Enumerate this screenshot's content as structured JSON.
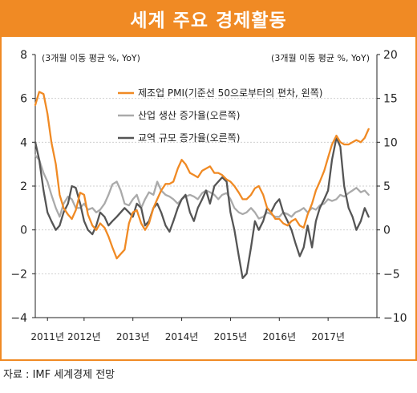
{
  "header": {
    "title": "세계 주요 경제활동"
  },
  "source": "자료 : IMF 세계경제 전망",
  "chart_data": {
    "type": "line",
    "left_unit": "(3개월 이동 평균 %, YoY)",
    "right_unit": "(3개월 이동 평균 %, YoY)",
    "y_left": {
      "min": -4,
      "max": 8,
      "ticks": [
        -4,
        -2,
        0,
        2,
        4,
        6,
        8
      ]
    },
    "y_right": {
      "min": -10,
      "max": 20,
      "ticks": [
        -10,
        -5,
        0,
        5,
        10,
        15,
        20
      ]
    },
    "x_range": [
      2011.0,
      2018.0
    ],
    "x_labels": [
      "2011년",
      "2012년",
      "2013년",
      "2014년",
      "2015년",
      "2016년",
      "2017년"
    ],
    "x_label_years": [
      2011.25,
      2012.0,
      2013.0,
      2014.0,
      2015.0,
      2016.0,
      2017.0
    ],
    "grid": true,
    "legend_position": "top-right",
    "colors": {
      "pmi": "#f08a24",
      "industrial": "#aaaaaa",
      "trade": "#555555",
      "accent": "#f08a24"
    },
    "series": [
      {
        "name": "제조업 PMI(기준선 50으로부터의 편차, 왼쪽)",
        "axis": "left",
        "color": "#f08a24",
        "x": [
          2011.0,
          2011.08,
          2011.17,
          2011.25,
          2011.33,
          2011.42,
          2011.5,
          2011.58,
          2011.67,
          2011.75,
          2011.83,
          2011.92,
          2012.0,
          2012.08,
          2012.17,
          2012.25,
          2012.33,
          2012.42,
          2012.5,
          2012.58,
          2012.67,
          2012.75,
          2012.83,
          2012.92,
          2013.0,
          2013.08,
          2013.17,
          2013.25,
          2013.33,
          2013.42,
          2013.5,
          2013.58,
          2013.67,
          2013.75,
          2013.83,
          2013.92,
          2014.0,
          2014.08,
          2014.17,
          2014.25,
          2014.33,
          2014.42,
          2014.5,
          2014.58,
          2014.67,
          2014.75,
          2014.83,
          2014.92,
          2015.0,
          2015.08,
          2015.17,
          2015.25,
          2015.33,
          2015.42,
          2015.5,
          2015.58,
          2015.67,
          2015.75,
          2015.83,
          2015.92,
          2016.0,
          2016.08,
          2016.17,
          2016.25,
          2016.33,
          2016.42,
          2016.5,
          2016.58,
          2016.67,
          2016.75,
          2016.83,
          2016.92,
          2017.0,
          2017.08,
          2017.17,
          2017.25,
          2017.33,
          2017.42,
          2017.5,
          2017.58,
          2017.67,
          2017.75,
          2017.83
        ],
        "values": [
          5.7,
          6.3,
          6.2,
          5.3,
          4.0,
          3.0,
          1.6,
          1.0,
          0.7,
          0.5,
          0.9,
          1.7,
          1.6,
          0.7,
          0.2,
          0.0,
          0.3,
          0.1,
          -0.3,
          -0.8,
          -1.3,
          -1.1,
          -0.9,
          0.3,
          0.8,
          0.9,
          0.3,
          0.0,
          0.3,
          1.0,
          1.4,
          1.8,
          2.1,
          2.1,
          2.2,
          2.8,
          3.2,
          3.0,
          2.6,
          2.5,
          2.4,
          2.7,
          2.8,
          2.9,
          2.6,
          2.6,
          2.5,
          2.3,
          2.2,
          2.0,
          1.7,
          1.4,
          1.4,
          1.6,
          1.9,
          2.0,
          1.6,
          1.0,
          0.8,
          0.5,
          0.5,
          0.3,
          0.2,
          0.4,
          0.5,
          0.2,
          0.1,
          0.7,
          1.2,
          1.8,
          2.2,
          2.7,
          3.3,
          3.9,
          4.3,
          4.0,
          3.9,
          3.9,
          4.0,
          4.1,
          4.0,
          4.2,
          4.6
        ]
      },
      {
        "name": "산업 생산 증가율(오른쪽)",
        "axis": "right",
        "color": "#aaaaaa",
        "x": [
          2011.0,
          2011.08,
          2011.17,
          2011.25,
          2011.33,
          2011.42,
          2011.5,
          2011.58,
          2011.67,
          2011.75,
          2011.83,
          2011.92,
          2012.0,
          2012.08,
          2012.17,
          2012.25,
          2012.33,
          2012.42,
          2012.5,
          2012.58,
          2012.67,
          2012.75,
          2012.83,
          2012.92,
          2013.0,
          2013.08,
          2013.17,
          2013.25,
          2013.33,
          2013.42,
          2013.5,
          2013.58,
          2013.67,
          2013.75,
          2013.83,
          2013.92,
          2014.0,
          2014.08,
          2014.17,
          2014.25,
          2014.33,
          2014.42,
          2014.5,
          2014.58,
          2014.67,
          2014.75,
          2014.83,
          2014.92,
          2015.0,
          2015.08,
          2015.17,
          2015.25,
          2015.33,
          2015.42,
          2015.5,
          2015.58,
          2015.67,
          2015.75,
          2015.83,
          2015.92,
          2016.0,
          2016.08,
          2016.17,
          2016.25,
          2016.33,
          2016.42,
          2016.5,
          2016.58,
          2016.67,
          2016.75,
          2016.83,
          2016.92,
          2017.0,
          2017.08,
          2017.17,
          2017.25,
          2017.33,
          2017.42,
          2017.5,
          2017.58,
          2017.67,
          2017.75,
          2017.83
        ],
        "values": [
          8.5,
          8.0,
          6.5,
          5.5,
          4.0,
          2.5,
          1.5,
          3.0,
          3.8,
          3.5,
          2.5,
          2.5,
          3.0,
          2.3,
          2.5,
          2.0,
          2.3,
          3.0,
          4.0,
          5.2,
          5.5,
          4.5,
          3.0,
          2.8,
          3.5,
          4.0,
          2.5,
          3.5,
          4.3,
          4.0,
          5.5,
          4.5,
          4.0,
          3.8,
          3.5,
          3.0,
          3.5,
          3.8,
          4.0,
          3.8,
          3.5,
          4.2,
          4.5,
          4.3,
          4.0,
          3.5,
          4.0,
          4.2,
          3.5,
          2.5,
          2.0,
          1.8,
          2.0,
          2.5,
          2.0,
          1.3,
          1.5,
          2.0,
          1.8,
          1.5,
          1.5,
          2.0,
          1.8,
          1.5,
          2.0,
          2.2,
          2.5,
          2.0,
          2.5,
          2.3,
          2.8,
          3.0,
          3.5,
          3.3,
          3.5,
          4.0,
          3.8,
          4.2,
          4.5,
          4.8,
          4.3,
          4.5,
          4.0
        ]
      },
      {
        "name": "교역 규모 증가율(오른쪽)",
        "axis": "right",
        "color": "#555555",
        "x": [
          2011.0,
          2011.08,
          2011.17,
          2011.25,
          2011.33,
          2011.42,
          2011.5,
          2011.58,
          2011.67,
          2011.75,
          2011.83,
          2011.92,
          2012.0,
          2012.08,
          2012.17,
          2012.25,
          2012.33,
          2012.42,
          2012.5,
          2012.58,
          2012.67,
          2012.75,
          2012.83,
          2012.92,
          2013.0,
          2013.08,
          2013.17,
          2013.25,
          2013.33,
          2013.42,
          2013.5,
          2013.58,
          2013.67,
          2013.75,
          2013.83,
          2013.92,
          2014.0,
          2014.08,
          2014.17,
          2014.25,
          2014.33,
          2014.42,
          2014.5,
          2014.58,
          2014.67,
          2014.75,
          2014.83,
          2014.92,
          2015.0,
          2015.08,
          2015.17,
          2015.25,
          2015.33,
          2015.42,
          2015.5,
          2015.58,
          2015.67,
          2015.75,
          2015.83,
          2015.92,
          2016.0,
          2016.08,
          2016.17,
          2016.25,
          2016.33,
          2016.42,
          2016.5,
          2016.58,
          2016.67,
          2016.75,
          2016.83,
          2016.92,
          2017.0,
          2017.08,
          2017.17,
          2017.25,
          2017.33,
          2017.42,
          2017.5,
          2017.58,
          2017.67,
          2017.75,
          2017.83
        ],
        "values": [
          10.0,
          8.0,
          4.5,
          2.0,
          1.0,
          0.0,
          0.5,
          2.0,
          3.0,
          5.0,
          4.8,
          3.0,
          1.0,
          0.0,
          -0.5,
          0.5,
          2.0,
          1.5,
          0.5,
          1.0,
          1.5,
          2.0,
          2.5,
          2.0,
          1.5,
          3.0,
          2.5,
          0.5,
          1.0,
          2.5,
          3.0,
          2.0,
          0.5,
          -0.2,
          1.0,
          2.5,
          3.5,
          4.0,
          2.0,
          1.0,
          2.5,
          3.5,
          4.5,
          3.0,
          5.0,
          5.5,
          6.0,
          5.5,
          2.0,
          0.0,
          -3.0,
          -5.5,
          -5.0,
          -2.0,
          1.0,
          0.0,
          1.0,
          2.5,
          2.0,
          3.0,
          3.5,
          2.0,
          1.0,
          0.0,
          -1.5,
          -3.0,
          -2.0,
          0.5,
          -2.0,
          1.0,
          2.5,
          3.5,
          4.5,
          8.0,
          10.5,
          9.5,
          5.0,
          2.5,
          1.5,
          0.0,
          1.0,
          2.5,
          1.5
        ]
      }
    ]
  }
}
